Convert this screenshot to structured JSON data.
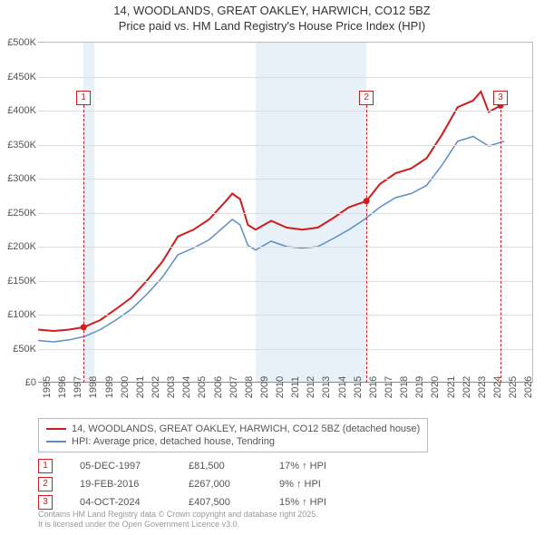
{
  "title_line1": "14, WOODLANDS, GREAT OAKLEY, HARWICH, CO12 5BZ",
  "title_line2": "Price paid vs. HM Land Registry's House Price Index (HPI)",
  "chart": {
    "type": "line",
    "background_color": "#ffffff",
    "shaded_band_color": "#e6f0f7",
    "grid_color": "#dddddd",
    "x_years": [
      1995,
      1996,
      1997,
      1998,
      1999,
      2000,
      2001,
      2002,
      2003,
      2004,
      2005,
      2006,
      2007,
      2008,
      2009,
      2010,
      2011,
      2012,
      2013,
      2014,
      2015,
      2016,
      2017,
      2018,
      2019,
      2020,
      2021,
      2022,
      2023,
      2024,
      2025,
      2026
    ],
    "xlim": [
      1995,
      2026.8
    ],
    "ylim": [
      0,
      500000
    ],
    "ytick_step": 50000,
    "yticks": [
      "£0",
      "£50K",
      "£100K",
      "£150K",
      "£200K",
      "£250K",
      "£300K",
      "£350K",
      "£400K",
      "£450K",
      "£500K"
    ],
    "shaded_bands": [
      {
        "start": 1997.93,
        "end": 1998.6
      },
      {
        "start": 2009.0,
        "end": 2016.13
      }
    ],
    "series": [
      {
        "name": "14, WOODLANDS, GREAT OAKLEY, HARWICH, CO12 5BZ (detached house)",
        "color": "#d01c1c",
        "width": 2,
        "points": [
          [
            1995,
            78000
          ],
          [
            1996,
            76000
          ],
          [
            1997,
            78000
          ],
          [
            1997.93,
            81500
          ],
          [
            1999,
            92000
          ],
          [
            2000,
            108000
          ],
          [
            2001,
            125000
          ],
          [
            2002,
            150000
          ],
          [
            2003,
            178000
          ],
          [
            2004,
            215000
          ],
          [
            2005,
            225000
          ],
          [
            2006,
            240000
          ],
          [
            2007,
            265000
          ],
          [
            2007.5,
            278000
          ],
          [
            2008,
            270000
          ],
          [
            2008.5,
            232000
          ],
          [
            2009,
            225000
          ],
          [
            2010,
            238000
          ],
          [
            2011,
            228000
          ],
          [
            2012,
            225000
          ],
          [
            2013,
            228000
          ],
          [
            2014,
            242000
          ],
          [
            2015,
            258000
          ],
          [
            2016.13,
            267000
          ],
          [
            2017,
            292000
          ],
          [
            2018,
            308000
          ],
          [
            2019,
            315000
          ],
          [
            2020,
            330000
          ],
          [
            2021,
            365000
          ],
          [
            2022,
            405000
          ],
          [
            2023,
            415000
          ],
          [
            2023.5,
            428000
          ],
          [
            2024,
            398000
          ],
          [
            2024.76,
            407500
          ],
          [
            2025,
            410000
          ]
        ]
      },
      {
        "name": "HPI: Average price, detached house, Tendring",
        "color": "#5b8fc7",
        "width": 1.5,
        "points": [
          [
            1995,
            62000
          ],
          [
            1996,
            60000
          ],
          [
            1997,
            63000
          ],
          [
            1998,
            68000
          ],
          [
            1999,
            78000
          ],
          [
            2000,
            92000
          ],
          [
            2001,
            108000
          ],
          [
            2002,
            130000
          ],
          [
            2003,
            155000
          ],
          [
            2004,
            188000
          ],
          [
            2005,
            198000
          ],
          [
            2006,
            210000
          ],
          [
            2007,
            230000
          ],
          [
            2007.5,
            240000
          ],
          [
            2008,
            232000
          ],
          [
            2008.5,
            202000
          ],
          [
            2009,
            195000
          ],
          [
            2010,
            208000
          ],
          [
            2011,
            200000
          ],
          [
            2012,
            198000
          ],
          [
            2013,
            200000
          ],
          [
            2014,
            212000
          ],
          [
            2015,
            225000
          ],
          [
            2016,
            240000
          ],
          [
            2017,
            258000
          ],
          [
            2018,
            272000
          ],
          [
            2019,
            278000
          ],
          [
            2020,
            290000
          ],
          [
            2021,
            320000
          ],
          [
            2022,
            355000
          ],
          [
            2023,
            362000
          ],
          [
            2024,
            348000
          ],
          [
            2025,
            355000
          ]
        ]
      }
    ],
    "markers": [
      {
        "num": "1",
        "year": 1997.93,
        "y_box": 430000
      },
      {
        "num": "2",
        "year": 2016.13,
        "y_box": 430000
      },
      {
        "num": "3",
        "year": 2024.76,
        "y_box": 430000
      }
    ],
    "sale_points": [
      {
        "year": 1997.93,
        "value": 81500,
        "color": "#d01c1c"
      },
      {
        "year": 2016.13,
        "value": 267000,
        "color": "#d01c1c"
      },
      {
        "year": 2024.76,
        "value": 407500,
        "color": "#d01c1c"
      }
    ]
  },
  "legend": {
    "items": [
      {
        "color": "#d01c1c",
        "label": "14, WOODLANDS, GREAT OAKLEY, HARWICH, CO12 5BZ (detached house)"
      },
      {
        "color": "#5b8fc7",
        "label": "HPI: Average price, detached house, Tendring"
      }
    ]
  },
  "transactions": [
    {
      "num": "1",
      "date": "05-DEC-1997",
      "price": "£81,500",
      "pct": "17% ↑ HPI"
    },
    {
      "num": "2",
      "date": "19-FEB-2016",
      "price": "£267,000",
      "pct": "9% ↑ HPI"
    },
    {
      "num": "3",
      "date": "04-OCT-2024",
      "price": "£407,500",
      "pct": "15% ↑ HPI"
    }
  ],
  "footer_line1": "Contains HM Land Registry data © Crown copyright and database right 2025.",
  "footer_line2": "It is licensed under the Open Government Licence v3.0."
}
